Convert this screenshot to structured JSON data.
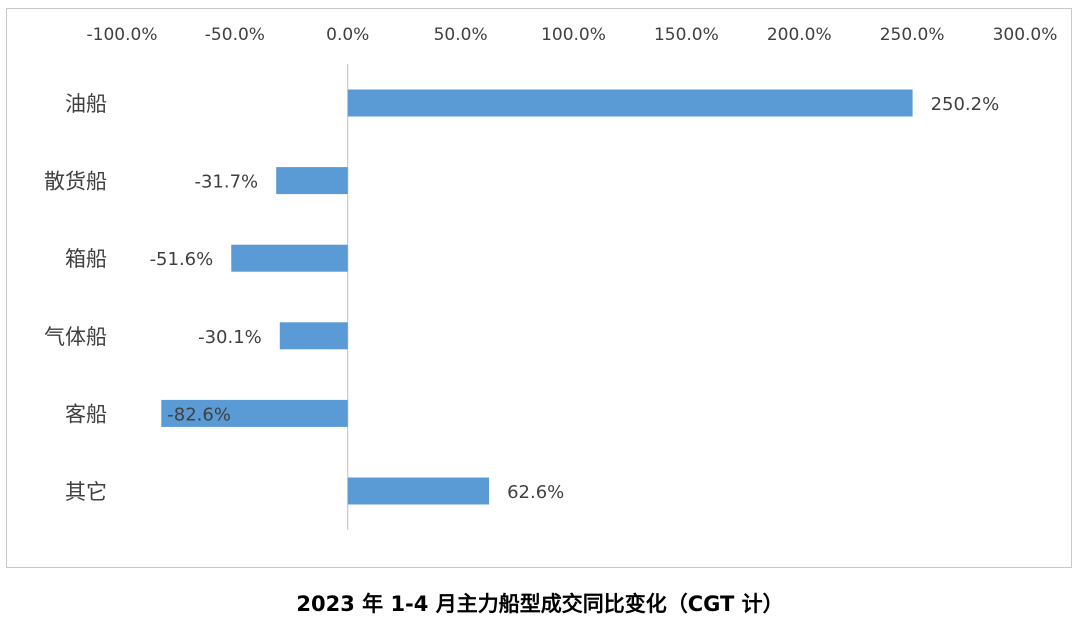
{
  "chart_data": {
    "type": "bar",
    "orientation": "horizontal",
    "title": "2023 年 1-4 月主力船型成交同比变化（CGT 计）",
    "categories": [
      "油船",
      "散货船",
      "箱船",
      "气体船",
      "客船",
      "其它"
    ],
    "series": [
      {
        "values": [
          250.2,
          -31.7,
          -51.6,
          -30.1,
          -82.6,
          62.6
        ],
        "labels": [
          "250.2%",
          "-31.7%",
          "-51.6%",
          "-30.1%",
          "-82.6%",
          "62.6%"
        ]
      }
    ],
    "xlim": [
      -100,
      300
    ],
    "xticks": [
      -100,
      -50,
      0,
      50,
      100,
      150,
      200,
      250,
      300
    ],
    "xtick_labels": [
      "-100.0%",
      "-50.0%",
      "0.0%",
      "50.0%",
      "100.0%",
      "150.0%",
      "200.0%",
      "250.0%",
      "300.0%"
    ],
    "xaxis_position": "top",
    "grid": false,
    "legend": "none",
    "bar_color": "#5b9bd5"
  }
}
